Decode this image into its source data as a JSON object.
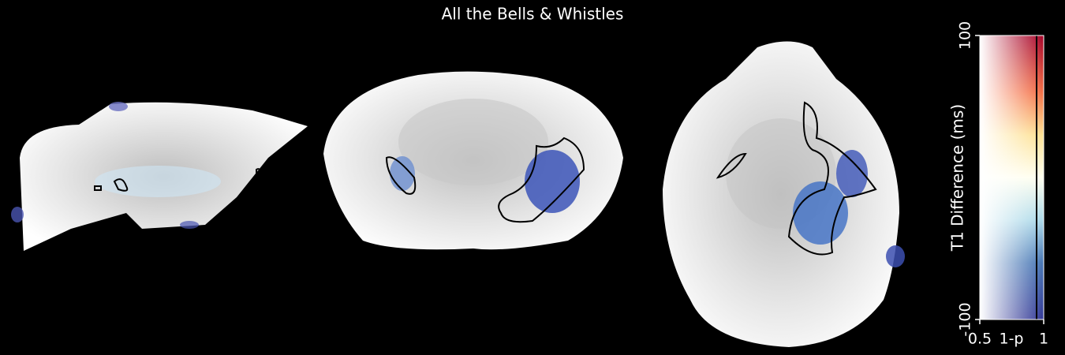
{
  "title": "All the Bells & Whistles",
  "colorbar": {
    "ylabel": "T1 Difference (ms)",
    "xlabel": "1-p",
    "ylim": [
      -100,
      100
    ],
    "yticks": [
      -100,
      100
    ],
    "xlim": [
      0.5,
      1
    ],
    "xticks": [
      0.5,
      1
    ]
  }
}
